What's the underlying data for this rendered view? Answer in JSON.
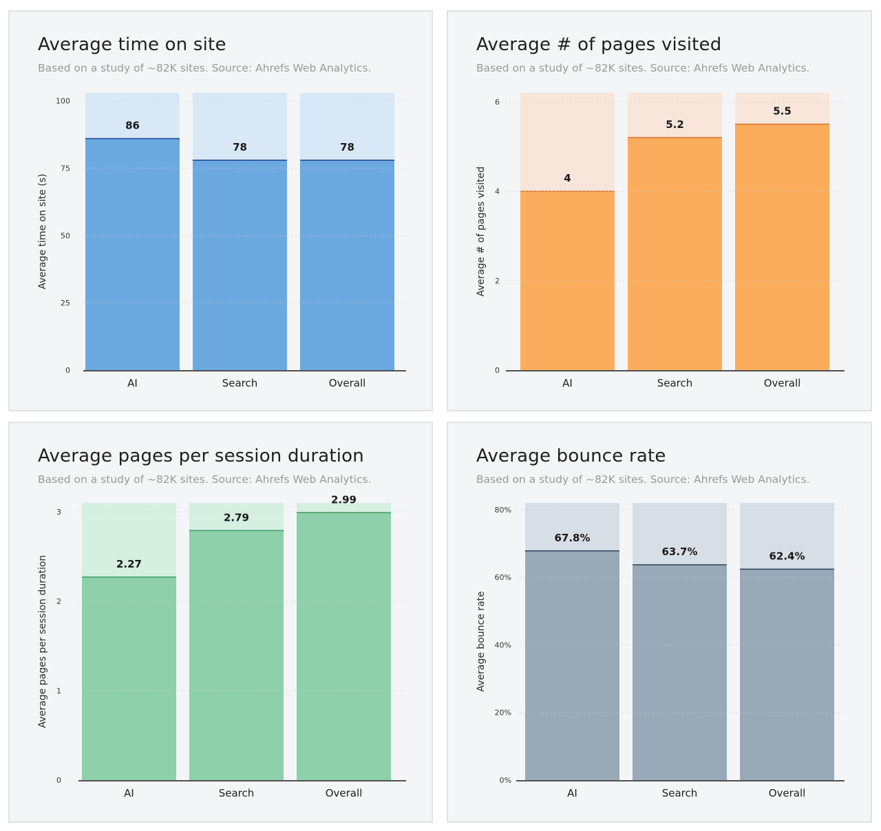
{
  "subtitle": "Based on a study of ~82K sites. Source: Ahrefs Web Analytics.",
  "chart_data": [
    {
      "type": "bar",
      "title": "Average time on site",
      "ylabel": "Average time on site (s)",
      "categories": [
        "AI",
        "Search",
        "Overall"
      ],
      "values": [
        86,
        78,
        78
      ],
      "value_labels": [
        "86",
        "78",
        "78"
      ],
      "yticks": [
        0,
        25,
        50,
        75,
        100
      ],
      "ytick_labels": [
        "0",
        "25",
        "50",
        "75",
        "100"
      ],
      "ylim": [
        0,
        103
      ],
      "grid": true,
      "colors": {
        "bar": "#6ba9e0",
        "background": "#d8e8f7",
        "line": "#1e3f8a"
      }
    },
    {
      "type": "bar",
      "title": "Average # of pages visited",
      "ylabel": "Average # of pages visited",
      "categories": [
        "AI",
        "Search",
        "Overall"
      ],
      "values": [
        4,
        5.2,
        5.5
      ],
      "value_labels": [
        "4",
        "5.2",
        "5.5"
      ],
      "yticks": [
        0,
        2,
        4,
        6
      ],
      "ytick_labels": [
        "0",
        "2",
        "4",
        "6"
      ],
      "ylim": [
        0,
        6.2
      ],
      "grid": true,
      "colors": {
        "bar": "#fbad5d",
        "background": "#f7e6d9",
        "line": "#d9742a"
      }
    },
    {
      "type": "bar",
      "title": "Average pages per session duration",
      "ylabel": "Average pages per session duration",
      "categories": [
        "AI",
        "Search",
        "Overall"
      ],
      "values": [
        2.27,
        2.79,
        2.99
      ],
      "value_labels": [
        "2.27",
        "2.79",
        "2.99"
      ],
      "yticks": [
        0,
        1,
        2,
        3
      ],
      "ytick_labels": [
        "0",
        "1",
        "2",
        "3"
      ],
      "ylim": [
        0,
        3.1
      ],
      "grid": true,
      "colors": {
        "bar": "#8ed0a9",
        "background": "#d5efe1",
        "line": "#3c9a5f"
      }
    },
    {
      "type": "bar",
      "title": "Average bounce rate",
      "ylabel": "Average bounce rate",
      "categories": [
        "AI",
        "Search",
        "Overall"
      ],
      "values": [
        67.8,
        63.7,
        62.4
      ],
      "value_labels": [
        "67.8%",
        "63.7%",
        "62.4%"
      ],
      "yticks": [
        0,
        20,
        40,
        60,
        80
      ],
      "ytick_labels": [
        "0%",
        "20%",
        "40%",
        "60%",
        "80%"
      ],
      "ylim": [
        0,
        82
      ],
      "grid": true,
      "colors": {
        "bar": "#98a9b8",
        "background": "#d8dee6",
        "line": "#2e3f55"
      }
    }
  ]
}
